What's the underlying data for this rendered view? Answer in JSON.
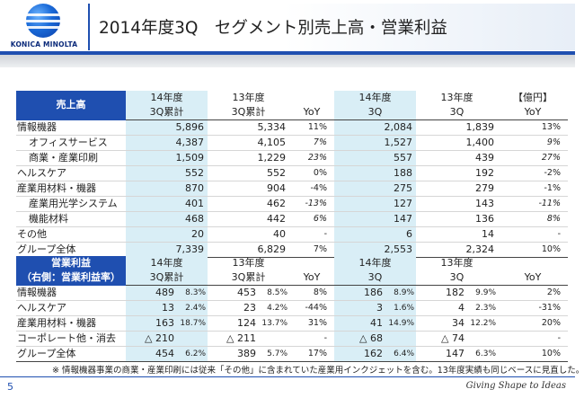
{
  "header": {
    "logo_text": "KONICA MINOLTA",
    "title": "2014年度3Q　セグメント別売上高・営業利益"
  },
  "sales": {
    "header_label": "売上高",
    "col_fy14_3q_cum": [
      "14年度",
      "3Q累計"
    ],
    "col_fy13_3q_cum": [
      "13年度",
      "3Q累計"
    ],
    "col_yoy": "YoY",
    "col_fy14_3q": [
      "14年度",
      "3Q"
    ],
    "col_fy13_3q": [
      "13年度",
      "3Q"
    ],
    "col_unit_yoy": [
      "【億円】",
      "YoY"
    ],
    "rows": [
      {
        "name": "情報機器",
        "a": "5,896",
        "b": "5,334",
        "yoy1": "11%",
        "c": "2,084",
        "d": "1,839",
        "yoy2": "13%",
        "italic": false
      },
      {
        "name": "オフィスサービス",
        "a": "4,387",
        "b": "4,105",
        "yoy1": "7%",
        "c": "1,527",
        "d": "1,400",
        "yoy2": "9%",
        "italic": true
      },
      {
        "name": "商業・産業印刷",
        "a": "1,509",
        "b": "1,229",
        "yoy1": "23%",
        "c": "557",
        "d": "439",
        "yoy2": "27%",
        "italic": true
      },
      {
        "name": "ヘルスケア",
        "a": "552",
        "b": "552",
        "yoy1": "0%",
        "c": "188",
        "d": "192",
        "yoy2": "-2%",
        "italic": false
      },
      {
        "name": "産業用材料・機器",
        "a": "870",
        "b": "904",
        "yoy1": "-4%",
        "c": "275",
        "d": "279",
        "yoy2": "-1%",
        "italic": false
      },
      {
        "name": "産業用光学システム",
        "a": "401",
        "b": "462",
        "yoy1": "-13%",
        "c": "127",
        "d": "143",
        "yoy2": "-11%",
        "italic": true
      },
      {
        "name": "機能材料",
        "a": "468",
        "b": "442",
        "yoy1": "6%",
        "c": "147",
        "d": "136",
        "yoy2": "8%",
        "italic": true
      },
      {
        "name": "その他",
        "a": "20",
        "b": "40",
        "yoy1": "-",
        "c": "6",
        "d": "14",
        "yoy2": "-",
        "italic": false
      }
    ],
    "total": {
      "name": "グループ全体",
      "a": "7,339",
      "b": "6,829",
      "yoy1": "7%",
      "c": "2,553",
      "d": "2,324",
      "yoy2": "10%"
    }
  },
  "op": {
    "header_label": [
      "営業利益",
      "（右側：営業利益率）"
    ],
    "col_fy14_3q_cum": [
      "14年度",
      "3Q累計"
    ],
    "col_fy13_3q_cum": [
      "13年度",
      "3Q累計"
    ],
    "col_yoy": "YoY",
    "col_fy14_3q": [
      "14年度",
      "3Q"
    ],
    "col_fy13_3q": [
      "13年度",
      "3Q"
    ],
    "col_yoy2": "YoY",
    "rows": [
      {
        "name": "情報機器",
        "a": "489",
        "am": "8.3%",
        "b": "453",
        "bm": "8.5%",
        "yoy1": "8%",
        "c": "186",
        "cm": "8.9%",
        "d": "182",
        "dm": "9.9%",
        "yoy2": "2%"
      },
      {
        "name": "ヘルスケア",
        "a": "13",
        "am": "2.4%",
        "b": "23",
        "bm": "4.2%",
        "yoy1": "-44%",
        "c": "3",
        "cm": "1.6%",
        "d": "4",
        "dm": "2.3%",
        "yoy2": "-31%"
      },
      {
        "name": "産業用材料・機器",
        "a": "163",
        "am": "18.7%",
        "b": "124",
        "bm": "13.7%",
        "yoy1": "31%",
        "c": "41",
        "cm": "14.9%",
        "d": "34",
        "dm": "12.2%",
        "yoy2": "20%"
      },
      {
        "name": "コーポレート他・消去",
        "a": "△ 210",
        "am": "",
        "b": "△ 211",
        "bm": "",
        "yoy1": "-",
        "c": "△ 68",
        "cm": "",
        "d": "△ 74",
        "dm": "",
        "yoy2": "-"
      }
    ],
    "total": {
      "name": "グループ全体",
      "a": "454",
      "am": "6.2%",
      "b": "389",
      "bm": "5.7%",
      "yoy1": "17%",
      "c": "162",
      "cm": "6.4%",
      "d": "147",
      "dm": "6.3%",
      "yoy2": "10%"
    }
  },
  "footnote": "※ 情報機器事業の商業・産業印刷には従来「その他」に含まれていた産業用インクジェットを含む。13年度実績も同じベースに見直した。",
  "footer": {
    "page_number": "5",
    "tagline": "Giving Shape to Ideas"
  }
}
